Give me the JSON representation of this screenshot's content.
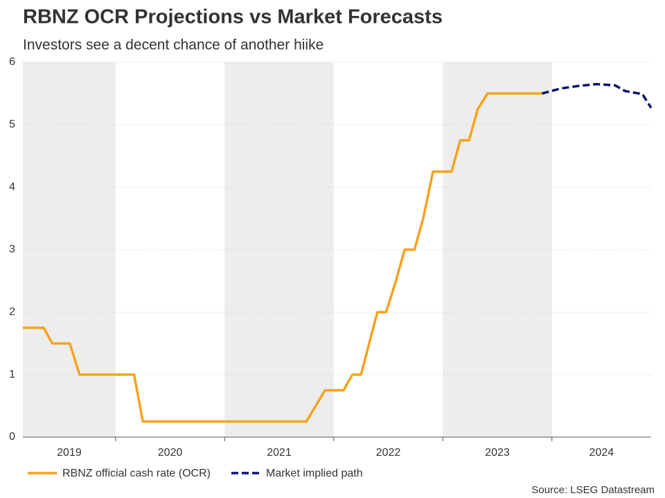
{
  "chart_data": {
    "type": "line",
    "title": "RBNZ OCR Projections vs Market Forecasts",
    "subtitle": "Investors see a decent chance of another hiike",
    "source": "Source: LSEG Datastream",
    "xlim": [
      2019.15,
      2024.91
    ],
    "xticks": [
      2020,
      2021,
      2022,
      2023,
      2024
    ],
    "year_labels": [
      "2019",
      "2020",
      "2021",
      "2022",
      "2023",
      "2024"
    ],
    "ylim": [
      0,
      6
    ],
    "yticks": [
      0,
      1,
      2,
      3,
      4,
      5,
      6
    ],
    "grid": true,
    "legend": "bottom-left",
    "series": [
      {
        "name": "RBNZ official cash rate (OCR)",
        "color": "#f7a21b",
        "style": "solid",
        "x": [
          2019.15,
          2019.34,
          2019.42,
          2019.58,
          2019.67,
          2020.17,
          2020.25,
          2021.75,
          2021.92,
          2022.09,
          2022.17,
          2022.25,
          2022.4,
          2022.48,
          2022.57,
          2022.65,
          2022.74,
          2022.82,
          2022.91,
          2023.08,
          2023.16,
          2023.24,
          2023.32,
          2023.41,
          2023.91
        ],
        "values": [
          1.75,
          1.75,
          1.5,
          1.5,
          1.0,
          1.0,
          0.25,
          0.25,
          0.75,
          0.75,
          1.0,
          1.0,
          2.0,
          2.0,
          2.5,
          3.0,
          3.0,
          3.5,
          4.25,
          4.25,
          4.75,
          4.75,
          5.25,
          5.5,
          5.5
        ]
      },
      {
        "name": "Market implied path",
        "color": "#0a1172",
        "style": "dashed",
        "x": [
          2023.91,
          2024.08,
          2024.24,
          2024.41,
          2024.58,
          2024.67,
          2024.83,
          2024.91
        ],
        "values": [
          5.5,
          5.58,
          5.62,
          5.65,
          5.63,
          5.54,
          5.49,
          5.27
        ]
      }
    ]
  }
}
